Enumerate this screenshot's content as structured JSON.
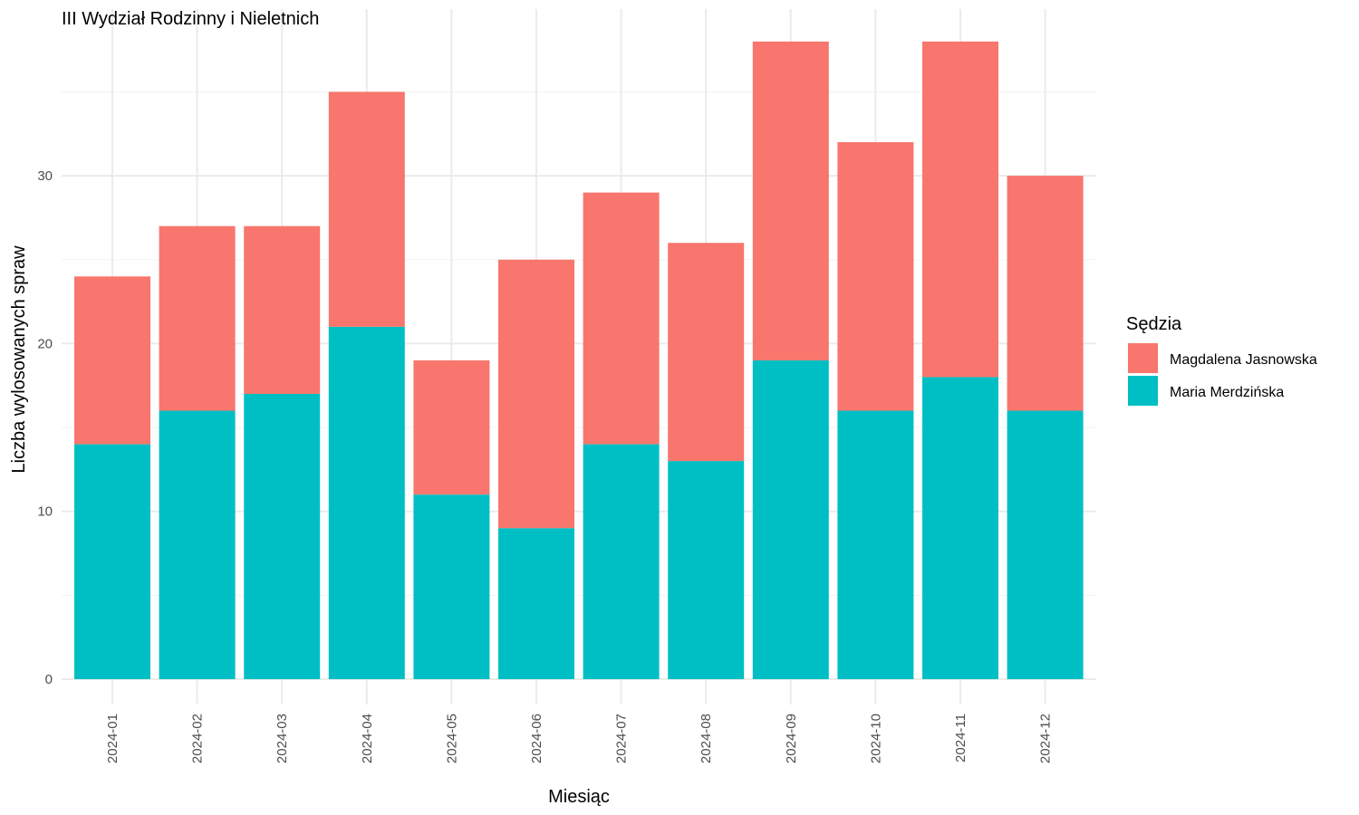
{
  "chart_data": {
    "type": "bar",
    "stacked": true,
    "title": "III Wydział Rodzinny i Nieletnich",
    "xlabel": "Miesiąc",
    "ylabel": "Liczba wylosowanych spraw",
    "ylim": [
      0,
      40
    ],
    "yticks": [
      "0",
      "10",
      "20",
      "30"
    ],
    "grid": true,
    "legend_title": "Sędzia",
    "legend_position": "right",
    "categories": [
      "2024-01",
      "2024-02",
      "2024-03",
      "2024-04",
      "2024-05",
      "2024-06",
      "2024-07",
      "2024-08",
      "2024-09",
      "2024-10",
      "2024-11",
      "2024-12"
    ],
    "series": [
      {
        "name": "Maria Merdzińska",
        "color": "#00BFC4",
        "values": [
          14,
          16,
          17,
          21,
          11,
          9,
          14,
          13,
          19,
          16,
          18,
          16
        ]
      },
      {
        "name": "Magdalena Jasnowska",
        "color": "#F8766D",
        "values": [
          10,
          11,
          10,
          14,
          8,
          16,
          15,
          13,
          19,
          16,
          20,
          14
        ]
      }
    ],
    "legend_order": [
      "Magdalena Jasnowska",
      "Maria Merdzińska"
    ]
  }
}
